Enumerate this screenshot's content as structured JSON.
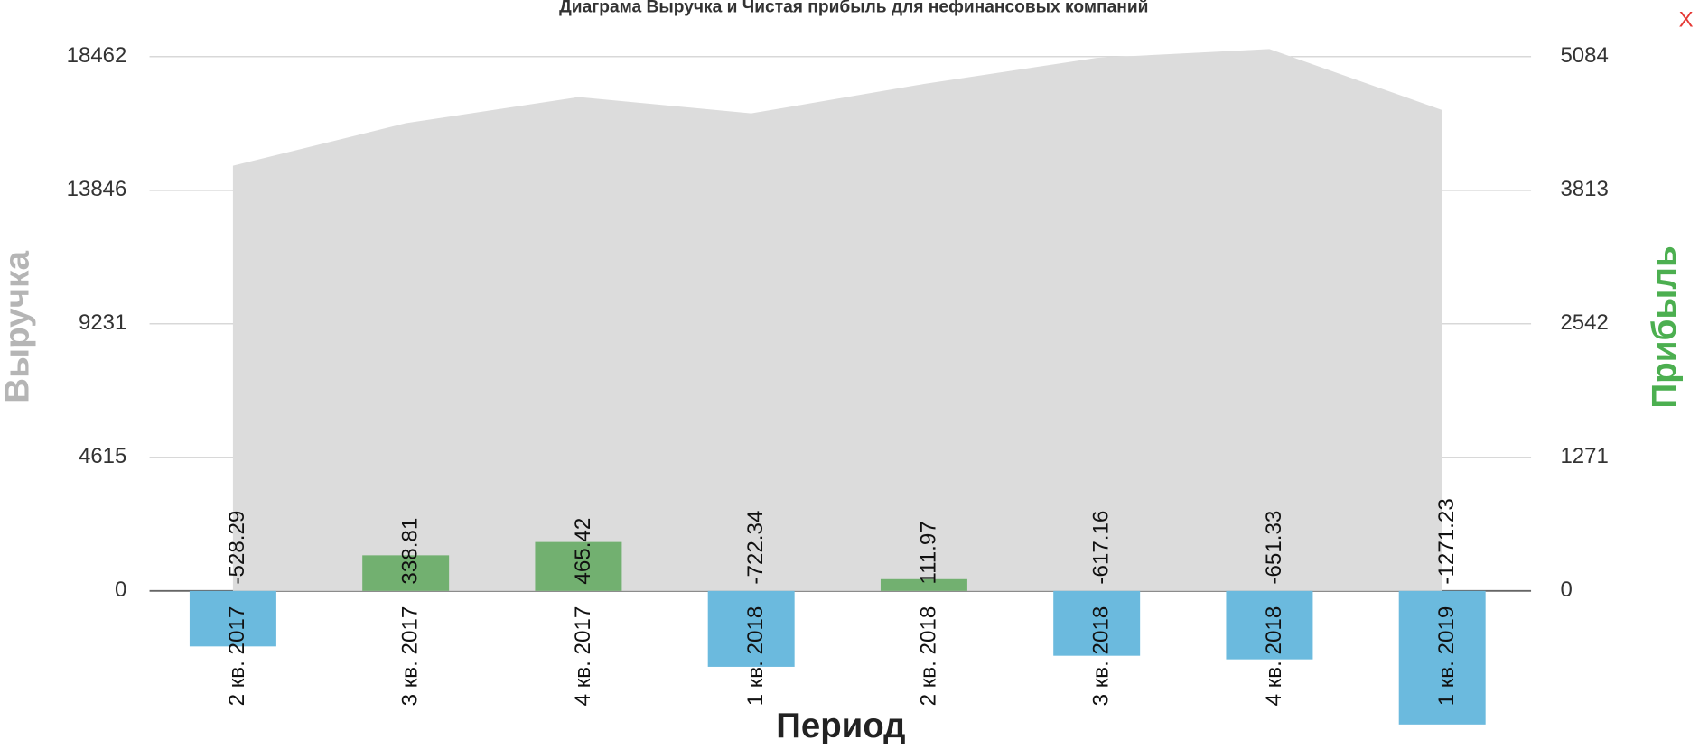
{
  "chart_data": {
    "type": "bar_area",
    "title": "Диаграма Выручка и Чистая прибыль для нефинансовых компаний",
    "close_label": "X",
    "ylabel": "Выручка",
    "y2label": "Прибыль",
    "xlabel": "Период",
    "categories": [
      "2 кв. 2017",
      "3 кв. 2017",
      "4 кв. 2017",
      "1 кв. 2018",
      "2 кв. 2018",
      "3 кв. 2018",
      "4 кв. 2018",
      "1 кв. 2019"
    ],
    "series": [
      {
        "name": "Выручка",
        "type": "area",
        "axis": "y",
        "color": "#dcdcdc",
        "values": [
          14694,
          16164,
          17068,
          16503,
          17520,
          18420,
          18726,
          16616
        ]
      },
      {
        "name": "Прибыль",
        "type": "bar",
        "axis": "y2",
        "color": "#72b070",
        "negative_color": "#6bbade",
        "values": [
          -528.29,
          338.81,
          465.42,
          -722.34,
          111.97,
          -617.16,
          -651.33,
          -1271.23
        ]
      }
    ],
    "ylim": [
      -4615,
      18462
    ],
    "yticks": [
      0,
      4615,
      9231,
      13846,
      18462
    ],
    "y2lim": [
      -1271,
      5084
    ],
    "y2ticks": [
      0,
      1271,
      2542,
      3813,
      5084
    ],
    "grid": true
  }
}
